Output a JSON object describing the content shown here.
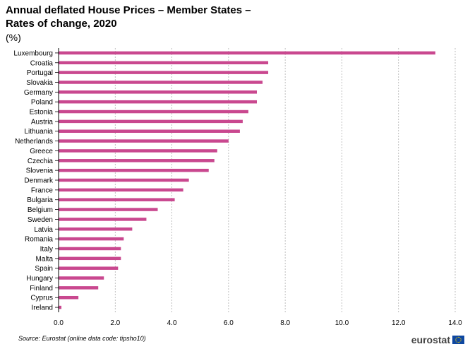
{
  "title_line1": "Annual deflated House Prices – Member States –",
  "title_line2": "Rates of change, 2020",
  "unit": "(%)",
  "source": "Source: Eurostat (online data code: tipsho10)",
  "logo_text": "eurostat",
  "colors": {
    "bar": "#c9488f",
    "grid": "#b0b0b0",
    "axis": "#000000"
  },
  "chart_data": {
    "type": "bar",
    "orientation": "horizontal",
    "title": "Annual deflated House Prices – Member States – Rates of change, 2020",
    "subtitle": "(%)",
    "categories": [
      "Luxembourg",
      "Croatia",
      "Portugal",
      "Slovakia",
      "Germany",
      "Poland",
      "Estonia",
      "Austria",
      "Lithuania",
      "Netherlands",
      "Greece",
      "Czechia",
      "Slovenia",
      "Denmark",
      "France",
      "Bulgaria",
      "Belgium",
      "Sweden",
      "Latvia",
      "Romania",
      "Italy",
      "Malta",
      "Spain",
      "Hungary",
      "Finland",
      "Cyprus",
      "Ireland"
    ],
    "values": [
      13.3,
      7.4,
      7.4,
      7.2,
      7.0,
      7.0,
      6.7,
      6.5,
      6.4,
      6.0,
      5.6,
      5.5,
      5.3,
      4.6,
      4.4,
      4.1,
      3.5,
      3.1,
      2.6,
      2.3,
      2.2,
      2.2,
      2.1,
      1.6,
      1.4,
      0.7,
      0.1
    ],
    "xlim": [
      0,
      14
    ],
    "xticks": [
      "0.0",
      "2.0",
      "4.0",
      "6.0",
      "8.0",
      "10.0",
      "12.0",
      "14.0"
    ],
    "grid": true,
    "legend": "none"
  }
}
